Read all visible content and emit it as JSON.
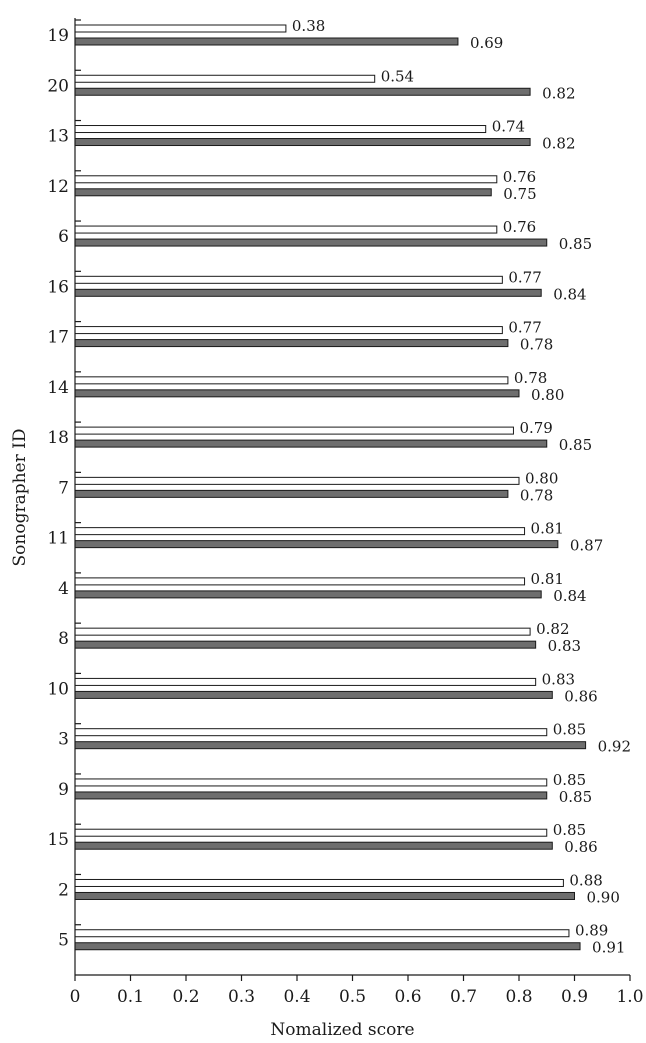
{
  "chart_data": {
    "type": "bar",
    "orientation": "horizontal",
    "xlabel": "Nomalized score",
    "ylabel": "Sonographer ID",
    "xlim": [
      0,
      1.0
    ],
    "xticks": [
      "0",
      "0.1",
      "0.2",
      "0.3",
      "0.4",
      "0.5",
      "0.6",
      "0.7",
      "0.8",
      "0.9",
      "1.0"
    ],
    "categories": [
      "19",
      "20",
      "13",
      "12",
      "6",
      "16",
      "17",
      "14",
      "18",
      "7",
      "11",
      "4",
      "8",
      "10",
      "3",
      "9",
      "15",
      "2",
      "5"
    ],
    "series": [
      {
        "color": "#ffffff",
        "values": [
          0.38,
          0.54,
          0.74,
          0.76,
          0.76,
          0.77,
          0.77,
          0.78,
          0.79,
          0.8,
          0.81,
          0.81,
          0.82,
          0.83,
          0.85,
          0.85,
          0.85,
          0.88,
          0.89
        ],
        "labels": [
          "0.38",
          "0.54",
          "0.74",
          "0.76",
          "0.76",
          "0.77",
          "0.77",
          "0.78",
          "0.79",
          "0.80",
          "0.81",
          "0.81",
          "0.82",
          "0.83",
          "0.85",
          "0.85",
          "0.85",
          "0.88",
          "0.89"
        ]
      },
      {
        "color": "#6e6e6e",
        "values": [
          0.69,
          0.82,
          0.82,
          0.75,
          0.85,
          0.84,
          0.78,
          0.8,
          0.85,
          0.78,
          0.87,
          0.84,
          0.83,
          0.86,
          0.92,
          0.85,
          0.86,
          0.9,
          0.91
        ],
        "labels": [
          "0.69",
          "0.82",
          "0.82",
          "0.75",
          "0.85",
          "0.84",
          "0.78",
          "0.80",
          "0.85",
          "0.78",
          "0.87",
          "0.84",
          "0.83",
          "0.86",
          "0.92",
          "0.85",
          "0.86",
          "0.90",
          "0.91"
        ]
      }
    ],
    "grid": false,
    "legend": false
  }
}
